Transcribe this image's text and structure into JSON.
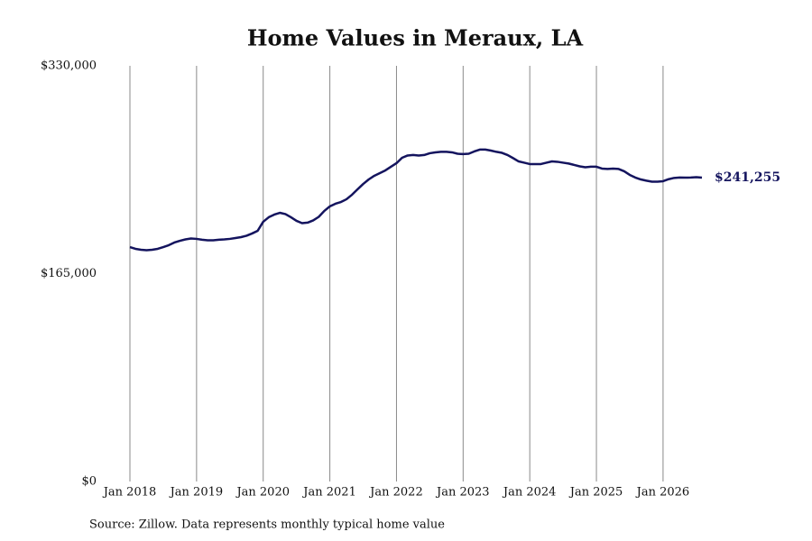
{
  "chart_data": {
    "type": "line",
    "title": "Home Values in Meraux, LA",
    "source": "Source: Zillow. Data represents monthly typical home value",
    "x": [
      "2018-01",
      "2018-02",
      "2018-03",
      "2018-04",
      "2018-05",
      "2018-06",
      "2018-07",
      "2018-08",
      "2018-09",
      "2018-10",
      "2018-11",
      "2018-12",
      "2019-01",
      "2019-02",
      "2019-03",
      "2019-04",
      "2019-05",
      "2019-06",
      "2019-07",
      "2019-08",
      "2019-09",
      "2019-10",
      "2019-11",
      "2019-12",
      "2020-01",
      "2020-02",
      "2020-03",
      "2020-04",
      "2020-05",
      "2020-06",
      "2020-07",
      "2020-08",
      "2020-09",
      "2020-10",
      "2020-11",
      "2020-12",
      "2021-01",
      "2021-02",
      "2021-03",
      "2021-04",
      "2021-05",
      "2021-06",
      "2021-07",
      "2021-08",
      "2021-09",
      "2021-10",
      "2021-11",
      "2021-12",
      "2022-01",
      "2022-02",
      "2022-03",
      "2022-04",
      "2022-05",
      "2022-06",
      "2022-07",
      "2022-08",
      "2022-09",
      "2022-10",
      "2022-11",
      "2022-12",
      "2023-01",
      "2023-02",
      "2023-03",
      "2023-04",
      "2023-05",
      "2023-06",
      "2023-07",
      "2023-08",
      "2023-09",
      "2023-10",
      "2023-11",
      "2023-12",
      "2024-01",
      "2024-02",
      "2024-03",
      "2024-04",
      "2024-05",
      "2024-06",
      "2024-07",
      "2024-08",
      "2024-09",
      "2024-10",
      "2024-11",
      "2024-12",
      "2025-01",
      "2025-02",
      "2025-03",
      "2025-04",
      "2025-05",
      "2025-06",
      "2025-07",
      "2025-08",
      "2025-09",
      "2025-10",
      "2025-11",
      "2025-12",
      "2026-01",
      "2026-02",
      "2026-03",
      "2026-04",
      "2026-05",
      "2026-06",
      "2026-07",
      "2026-08"
    ],
    "series": [
      {
        "name": "Home value",
        "color": "#14145e",
        "values": [
          186100,
          184700,
          184000,
          183600,
          184000,
          184700,
          186100,
          187600,
          189700,
          191100,
          192200,
          192900,
          192600,
          191900,
          191500,
          191500,
          191900,
          192200,
          192600,
          193300,
          194000,
          195100,
          196900,
          199000,
          206200,
          209800,
          211900,
          213300,
          212300,
          209800,
          206900,
          205100,
          205500,
          207300,
          210100,
          214800,
          218400,
          220500,
          221900,
          224100,
          227700,
          232000,
          236200,
          239800,
          242700,
          244800,
          247000,
          249900,
          252700,
          257000,
          258800,
          259200,
          258800,
          259200,
          260600,
          261300,
          261700,
          261700,
          261300,
          260200,
          259900,
          260200,
          262000,
          263500,
          263500,
          262700,
          261700,
          260900,
          259200,
          256700,
          254100,
          253100,
          252000,
          252000,
          252000,
          253100,
          254100,
          253800,
          253100,
          252400,
          251300,
          250200,
          249500,
          249900,
          249900,
          248400,
          248100,
          248400,
          248100,
          246300,
          243400,
          241300,
          239800,
          238800,
          238000,
          238000,
          238400,
          240000,
          241000,
          241300,
          241200,
          241300,
          241600,
          241255
        ]
      }
    ],
    "last_value_label": "$241,255",
    "xlim": [
      "2018-01",
      "2026-08"
    ],
    "xticks": [
      {
        "value": "2018-01",
        "label": "Jan 2018"
      },
      {
        "value": "2019-01",
        "label": "Jan 2019"
      },
      {
        "value": "2020-01",
        "label": "Jan 2020"
      },
      {
        "value": "2021-01",
        "label": "Jan 2021"
      },
      {
        "value": "2022-01",
        "label": "Jan 2022"
      },
      {
        "value": "2023-01",
        "label": "Jan 2023"
      },
      {
        "value": "2024-01",
        "label": "Jan 2024"
      },
      {
        "value": "2025-01",
        "label": "Jan 2025"
      },
      {
        "value": "2026-01",
        "label": "Jan 2026"
      }
    ],
    "ylim": [
      0,
      330000
    ],
    "yticks": [
      {
        "value": 0,
        "label": "$0"
      },
      {
        "value": 165000,
        "label": "$165,000"
      },
      {
        "value": 330000,
        "label": "$330,000"
      }
    ],
    "grid": "x"
  }
}
